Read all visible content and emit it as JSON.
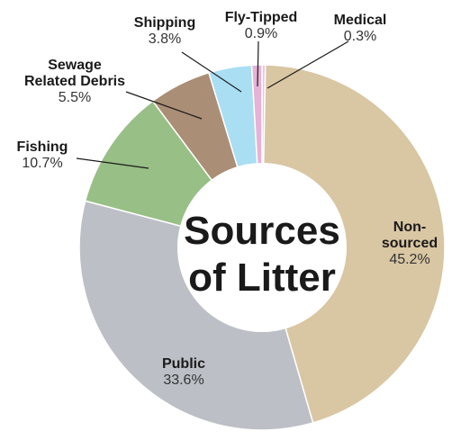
{
  "chart_data": {
    "type": "pie",
    "title": "Sources of Litter",
    "title_lines": [
      "Sources",
      "of Litter"
    ],
    "donut": true,
    "start": "12 o'clock",
    "direction": "clockwise",
    "slices": [
      {
        "key": "medical",
        "name_lines": [
          "Medical"
        ],
        "value": 0.3,
        "value_label": "0.3%",
        "color": "#e9c7de"
      },
      {
        "key": "non-sourced",
        "name_lines": [
          "Non-",
          "sourced"
        ],
        "value": 45.2,
        "value_label": "45.2%",
        "color": "#d9c6a3"
      },
      {
        "key": "public",
        "name_lines": [
          "Public"
        ],
        "value": 33.6,
        "value_label": "33.6%",
        "color": "#bcc0c6"
      },
      {
        "key": "fishing",
        "name_lines": [
          "Fishing"
        ],
        "value": 10.7,
        "value_label": "10.7%",
        "color": "#98bf85"
      },
      {
        "key": "sewage",
        "name_lines": [
          "Sewage",
          "Related Debris"
        ],
        "value": 5.5,
        "value_label": "5.5%",
        "color": "#aa8e75"
      },
      {
        "key": "shipping",
        "name_lines": [
          "Shipping"
        ],
        "value": 3.8,
        "value_label": "3.8%",
        "color": "#a9def3"
      },
      {
        "key": "fly-tipped",
        "name_lines": [
          "Fly-Tipped"
        ],
        "value": 0.9,
        "value_label": "0.9%",
        "color": "#e6b2d6"
      }
    ]
  }
}
